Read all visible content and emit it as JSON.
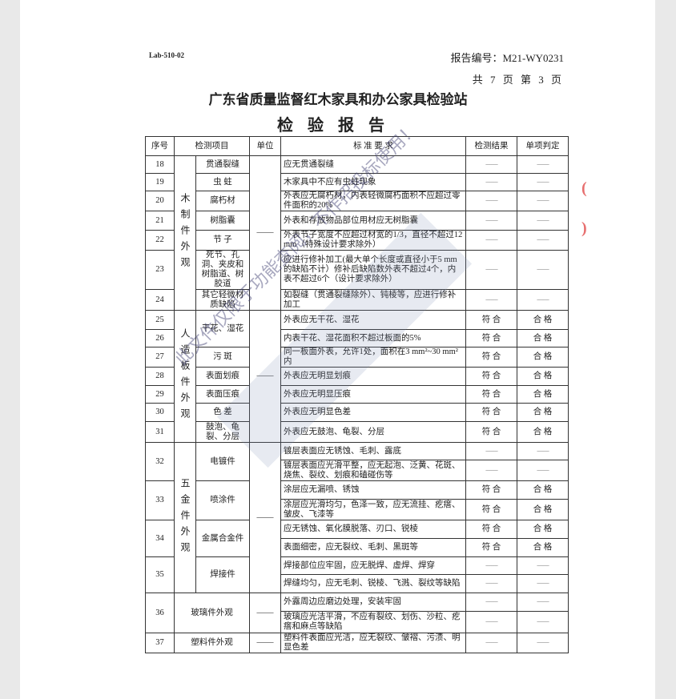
{
  "header": {
    "lab_code": "Lab-510-02",
    "report_no": "报告编号：M21-WY0231",
    "pages": "共 7 页 第 3 页",
    "org": "广东省质量监督红木家具和办公家具检验站",
    "title": "检验报告"
  },
  "table": {
    "columns": [
      "序号",
      "检测项目",
      "单位",
      "标 准 要 求",
      "检测结果",
      "单项判定"
    ],
    "rows": [
      {
        "no": "18",
        "cat": "木制件外观",
        "item": "贯通裂缝",
        "unit": "——",
        "std": "应无贯通裂缝",
        "result": "------",
        "verdict": "------"
      },
      {
        "no": "19",
        "cat": "木制件外观",
        "item": "虫 蛀",
        "unit": "——",
        "std": "木家具中不应有虫蛀现象",
        "result": "------",
        "verdict": "------"
      },
      {
        "no": "20",
        "cat": "木制件外观",
        "item": "腐朽材",
        "unit": "——",
        "std": "外表应无腐朽材，内表轻微腐朽面积不应超过零件面积的20%",
        "result": "------",
        "verdict": "------"
      },
      {
        "no": "21",
        "cat": "木制件外观",
        "item": "树脂囊",
        "unit": "——",
        "std": "外表和存放物品部位用材应无树脂囊",
        "result": "------",
        "verdict": "------"
      },
      {
        "no": "22",
        "cat": "木制件外观",
        "item": "节 子",
        "unit": "——",
        "std": "外表节子宽度不应超过材宽的1/3，直径不超过12 mm（特殊设计要求除外）",
        "result": "------",
        "verdict": "------"
      },
      {
        "no": "23",
        "cat": "木制件外观",
        "item": "死节、孔洞、夹皮和树脂道、树胶道",
        "unit": "——",
        "std": "应进行修补加工(最大单个长度或直径小于5 mm的缺陷不计）修补后缺陷数外表不超过4个，内表不超过6个（设计要求除外）",
        "result": "------",
        "verdict": "------"
      },
      {
        "no": "24",
        "cat": "木制件外观",
        "item": "其它轻微材质缺陷",
        "unit": "——",
        "std": "如裂缝（贯通裂缝除外）、钝棱等，应进行修补加工",
        "result": "------",
        "verdict": "------"
      },
      {
        "no": "25",
        "cat": "人造板件外观",
        "item": "干花、湿花",
        "unit": "——",
        "std": "外表应无干花、湿花",
        "result": "符 合",
        "verdict": "合 格"
      },
      {
        "no": "26",
        "cat": "人造板件外观",
        "item": "干花、湿花",
        "unit": "——",
        "std": "内表干花、湿花面积不超过板面的5%",
        "result": "符 合",
        "verdict": "合 格"
      },
      {
        "no": "27",
        "cat": "人造板件外观",
        "item": "污 斑",
        "unit": "——",
        "std": "同一板面外表，允许1处，面积在3 mm²~30 mm²内",
        "result": "符 合",
        "verdict": "合 格"
      },
      {
        "no": "28",
        "cat": "人造板件外观",
        "item": "表面划痕",
        "unit": "——",
        "std": "外表应无明显划痕",
        "result": "符 合",
        "verdict": "合 格"
      },
      {
        "no": "29",
        "cat": "人造板件外观",
        "item": "表面压痕",
        "unit": "——",
        "std": "外表应无明显压痕",
        "result": "符 合",
        "verdict": "合 格"
      },
      {
        "no": "30",
        "cat": "人造板件外观",
        "item": "色 差",
        "unit": "——",
        "std": "外表应无明显色差",
        "result": "符 合",
        "verdict": "合 格"
      },
      {
        "no": "31",
        "cat": "人造板件外观",
        "item": "鼓泡、龟裂、分层",
        "unit": "——",
        "std": "外表应无鼓泡、龟裂、分层",
        "result": "符 合",
        "verdict": "合 格"
      },
      {
        "no": "32",
        "cat": "五金件外观",
        "item": "电镀件",
        "unit": "——",
        "std": "镀层表面应无锈蚀、毛刺、露底",
        "result": "------",
        "verdict": "------"
      },
      {
        "no": "32",
        "cat": "五金件外观",
        "item": "电镀件",
        "unit": "——",
        "std": "镀层表面应光滑平整，应无起泡、泛黄、花斑、烧焦、裂纹、划痕和磕碰伤等",
        "result": "------",
        "verdict": "------"
      },
      {
        "no": "33",
        "cat": "五金件外观",
        "item": "喷涂件",
        "unit": "——",
        "std": "涂层应无漏喷、锈蚀",
        "result": "符 合",
        "verdict": "合 格"
      },
      {
        "no": "33",
        "cat": "五金件外观",
        "item": "喷涂件",
        "unit": "——",
        "std": "涂层应光滑均匀，色泽一致，应无流挂、疙瘩、皱皮、飞漆等",
        "result": "符 合",
        "verdict": "合 格"
      },
      {
        "no": "34",
        "cat": "五金件外观",
        "item": "金属合金件",
        "unit": "——",
        "std": "应无锈蚀、氧化膜脱落、刃口、锐棱",
        "result": "符 合",
        "verdict": "合 格"
      },
      {
        "no": "34",
        "cat": "五金件外观",
        "item": "金属合金件",
        "unit": "——",
        "std": "表面细密，应无裂纹、毛刺、黑斑等",
        "result": "符 合",
        "verdict": "合 格"
      },
      {
        "no": "35",
        "cat": "五金件外观",
        "item": "焊接件",
        "unit": "——",
        "std": "焊接部位应牢固，应无脱焊、虚焊、焊穿",
        "result": "------",
        "verdict": "------"
      },
      {
        "no": "35",
        "cat": "五金件外观",
        "item": "焊接件",
        "unit": "——",
        "std": "焊缝均匀，应无毛刺、锐棱、飞溅、裂纹等缺陷",
        "result": "------",
        "verdict": "------"
      },
      {
        "no": "36",
        "cat": "玻璃件外观",
        "item": "",
        "unit": "——",
        "std": "外露周边应磨边处理，安装牢固",
        "result": "------",
        "verdict": "------"
      },
      {
        "no": "36",
        "cat": "玻璃件外观",
        "item": "",
        "unit": "——",
        "std": "玻璃应光洁平滑，不应有裂纹、划伤、沙粒、疙瘩和麻点等缺陷",
        "result": "------",
        "verdict": "------"
      },
      {
        "no": "37",
        "cat": "塑料件外观",
        "item": "",
        "unit": "——",
        "std": "塑料件表面应光洁，应无裂纹、皱褶、污渍、明显色差",
        "result": "------",
        "verdict": "------"
      }
    ]
  },
  "watermark": "此文件仅限于功能查阅，不作招投标使用！",
  "colors": {
    "paper": "#ffffff",
    "line": "#333333",
    "watermark": "#3c3c6e",
    "stamp": "#dd3333"
  }
}
